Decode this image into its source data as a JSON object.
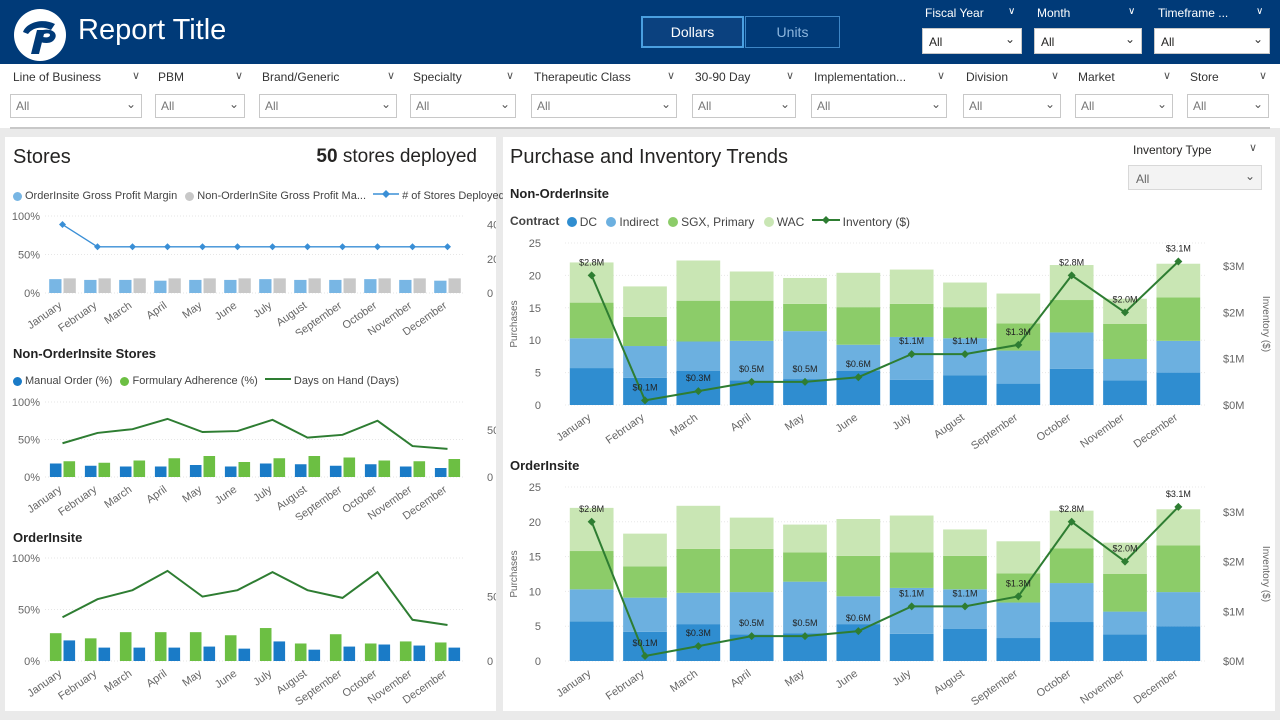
{
  "header": {
    "title": "Report Title",
    "toggle": {
      "dollars": "Dollars",
      "units": "Units"
    },
    "slicers": [
      {
        "label": "Fiscal Year",
        "value": "All"
      },
      {
        "label": "Month",
        "value": "All"
      },
      {
        "label": "Timeframe ...",
        "value": "All"
      }
    ]
  },
  "filters": [
    {
      "label": "Line of Business",
      "value": "All"
    },
    {
      "label": "PBM",
      "value": "All"
    },
    {
      "label": "Brand/Generic",
      "value": "All"
    },
    {
      "label": "Specialty",
      "value": "All"
    },
    {
      "label": "Therapeutic Class",
      "value": "All"
    },
    {
      "label": "30-90 Day",
      "value": "All"
    },
    {
      "label": "Implementation...",
      "value": "All"
    },
    {
      "label": "Division",
      "value": "All"
    },
    {
      "label": "Market",
      "value": "All"
    },
    {
      "label": "Store",
      "value": "All"
    }
  ],
  "stores": {
    "title": "Stores",
    "count": "50",
    "count_suffix": "stores deployed",
    "legend1": {
      "a": "OrderInsite Gross Profit Margin",
      "b": "Non-OrderInSite Gross Profit Ma...",
      "c": "# of Stores Deployed"
    },
    "legend2": {
      "a": "Manual Order (%)",
      "b": "Formulary Adherence (%)",
      "c": "Days on Hand (Days)"
    },
    "non_title": "Non-OrderInsite Stores",
    "oi_title": "OrderInsite"
  },
  "trends": {
    "title": "Purchase and Inventory Trends",
    "inv_type_label": "Inventory Type",
    "inv_type_value": "All",
    "non_title": "Non-OrderInsite",
    "oi_title": "OrderInsite",
    "legend": {
      "prefix": "Contract",
      "dc": "DC",
      "indirect": "Indirect",
      "sgx": "SGX, Primary",
      "wac": "WAC",
      "inv": "Inventory ($)"
    }
  },
  "colors": {
    "header": "#003a78",
    "dc": "#2f8dd0",
    "indirect": "#6cb0e0",
    "sgx": "#8ccc69",
    "wac": "#c9e6b4",
    "inventory": "#2e7d32",
    "manual": "#1a7bc7",
    "formulary": "#6cbf43",
    "gp_oi": "#78b6e4",
    "gp_non": "#c8c8c8",
    "stores_line": "#3a8fd6"
  },
  "chart_data": [
    {
      "type": "bar",
      "title": "",
      "categories": [
        "January",
        "February",
        "March",
        "April",
        "May",
        "June",
        "July",
        "August",
        "September",
        "October",
        "November",
        "December"
      ],
      "series": [
        {
          "name": "OrderInsite Gross Profit Margin",
          "values": [
            18,
            17,
            17,
            16,
            17,
            17,
            18,
            17,
            17,
            18,
            17,
            16
          ]
        },
        {
          "name": "Non-OrderInSite Gross Profit Ma...",
          "values": [
            19,
            19,
            19,
            19,
            19,
            19,
            19,
            19,
            19,
            19,
            19,
            19
          ]
        },
        {
          "name": "# of Stores Deployed",
          "values": [
            40,
            27,
            27,
            27,
            27,
            27,
            27,
            27,
            27,
            27,
            27,
            27
          ]
        }
      ],
      "y_ticks": [
        "100%",
        "50%",
        "0%"
      ],
      "y2_ticks": [
        "40",
        "20",
        "0"
      ],
      "ylim": [
        0,
        100
      ],
      "y2lim": [
        0,
        45
      ]
    },
    {
      "type": "bar",
      "title": "Non-OrderInsite Stores",
      "categories": [
        "January",
        "February",
        "March",
        "April",
        "May",
        "June",
        "July",
        "August",
        "September",
        "October",
        "November",
        "December"
      ],
      "series": [
        {
          "name": "Manual Order (%)",
          "values": [
            18,
            15,
            14,
            14,
            16,
            14,
            18,
            17,
            15,
            17,
            14,
            12
          ]
        },
        {
          "name": "Formulary Adherence (%)",
          "values": [
            21,
            19,
            22,
            25,
            28,
            20,
            25,
            28,
            26,
            22,
            21,
            24
          ]
        },
        {
          "name": "Days on Hand (Days)",
          "values": [
            36,
            47,
            51,
            62,
            48,
            49,
            61,
            42,
            45,
            60,
            33,
            30
          ]
        }
      ],
      "y_ticks": [
        "100%",
        "50%",
        "0%"
      ],
      "y2_ticks": [
        "50",
        "0"
      ],
      "ylim": [
        0,
        100
      ],
      "y2lim": [
        0,
        80
      ]
    },
    {
      "type": "bar",
      "title": "OrderInsite",
      "categories": [
        "January",
        "February",
        "March",
        "April",
        "May",
        "June",
        "July",
        "August",
        "September",
        "October",
        "November",
        "December"
      ],
      "series": [
        {
          "name": "Formulary Adherence (%)",
          "values": [
            27,
            22,
            28,
            28,
            28,
            25,
            32,
            17,
            26,
            17,
            19,
            18
          ]
        },
        {
          "name": "Manual Order (%)",
          "values": [
            20,
            13,
            13,
            13,
            14,
            12,
            19,
            11,
            14,
            16,
            15,
            13
          ]
        },
        {
          "name": "Days on Hand (Days)",
          "values": [
            34,
            48,
            55,
            70,
            50,
            55,
            69,
            55,
            49,
            69,
            32,
            28
          ]
        }
      ],
      "y_ticks": [
        "100%",
        "50%",
        "0%"
      ],
      "y2_ticks": [
        "50",
        "0"
      ],
      "ylim": [
        0,
        100
      ],
      "y2lim": [
        0,
        80
      ]
    },
    {
      "type": "bar",
      "title": "Non-OrderInsite",
      "categories": [
        "January",
        "February",
        "March",
        "April",
        "May",
        "June",
        "July",
        "August",
        "September",
        "October",
        "November",
        "December"
      ],
      "series": [
        {
          "name": "DC",
          "values": [
            5.7,
            4.2,
            5.3,
            3.8,
            4.0,
            5.3,
            3.9,
            4.6,
            3.3,
            5.6,
            3.8,
            5.0
          ]
        },
        {
          "name": "Indirect",
          "values": [
            4.6,
            4.9,
            4.5,
            6.1,
            7.4,
            4.0,
            6.6,
            5.7,
            5.1,
            5.6,
            3.3,
            4.9
          ]
        },
        {
          "name": "SGX, Primary",
          "values": [
            5.5,
            4.5,
            6.3,
            6.2,
            4.2,
            5.8,
            5.1,
            4.8,
            4.2,
            5.0,
            5.4,
            6.7
          ]
        },
        {
          "name": "WAC",
          "values": [
            6.2,
            4.7,
            6.2,
            4.5,
            4.0,
            5.3,
            5.3,
            3.8,
            4.6,
            5.4,
            3.9,
            5.2
          ]
        },
        {
          "name": "Inventory ($)",
          "values": [
            2.8,
            0.1,
            0.3,
            0.5,
            0.5,
            0.6,
            1.1,
            1.1,
            1.3,
            2.8,
            2.0,
            3.1
          ]
        }
      ],
      "data_labels": [
        "$2.8M",
        "$0.1M",
        "$0.3M",
        "$0.5M",
        "$0.5M",
        "$0.6M",
        "$1.1M",
        "$1.1M",
        "$1.3M",
        "$2.8M",
        "$2.0M",
        "$3.1M"
      ],
      "ylabel": "Purchases",
      "y2label": "Inventory ($)",
      "y_ticks": [
        "25",
        "20",
        "15",
        "10",
        "5",
        "0"
      ],
      "y2_ticks": [
        "$3M",
        "$2M",
        "$1M",
        "$0M"
      ],
      "ylim": [
        0,
        25
      ],
      "y2lim": [
        0,
        3.5
      ]
    },
    {
      "type": "bar",
      "title": "OrderInsite",
      "categories": [
        "January",
        "February",
        "March",
        "April",
        "May",
        "June",
        "July",
        "August",
        "September",
        "October",
        "November",
        "December"
      ],
      "series": [
        {
          "name": "DC",
          "values": [
            5.7,
            4.2,
            5.3,
            3.8,
            4.0,
            5.3,
            3.9,
            4.6,
            3.3,
            5.6,
            3.8,
            5.0
          ]
        },
        {
          "name": "Indirect",
          "values": [
            4.6,
            4.9,
            4.5,
            6.1,
            7.4,
            4.0,
            6.6,
            5.7,
            5.1,
            5.6,
            3.3,
            4.9
          ]
        },
        {
          "name": "SGX, Primary",
          "values": [
            5.5,
            4.5,
            6.3,
            6.2,
            4.2,
            5.8,
            5.1,
            4.8,
            4.2,
            5.0,
            5.4,
            6.7
          ]
        },
        {
          "name": "WAC",
          "values": [
            6.2,
            4.7,
            6.2,
            4.5,
            4.0,
            5.3,
            5.3,
            3.8,
            4.6,
            5.4,
            4.5,
            5.2
          ]
        },
        {
          "name": "Inventory ($)",
          "values": [
            2.8,
            0.1,
            0.3,
            0.5,
            0.5,
            0.6,
            1.1,
            1.1,
            1.3,
            2.8,
            2.0,
            3.1
          ]
        }
      ],
      "data_labels": [
        "$2.8M",
        "$0.1M",
        "$0.3M",
        "$0.5M",
        "$0.5M",
        "$0.6M",
        "$1.1M",
        "$1.1M",
        "$1.3M",
        "$2.8M",
        "$2.0M",
        "$3.1M"
      ],
      "ylabel": "Purchases",
      "y2label": "Inventory ($)",
      "y_ticks": [
        "25",
        "20",
        "15",
        "10",
        "5",
        "0"
      ],
      "y2_ticks": [
        "$3M",
        "$2M",
        "$1M",
        "$0M"
      ],
      "ylim": [
        0,
        25
      ],
      "y2lim": [
        0,
        3.5
      ]
    }
  ]
}
